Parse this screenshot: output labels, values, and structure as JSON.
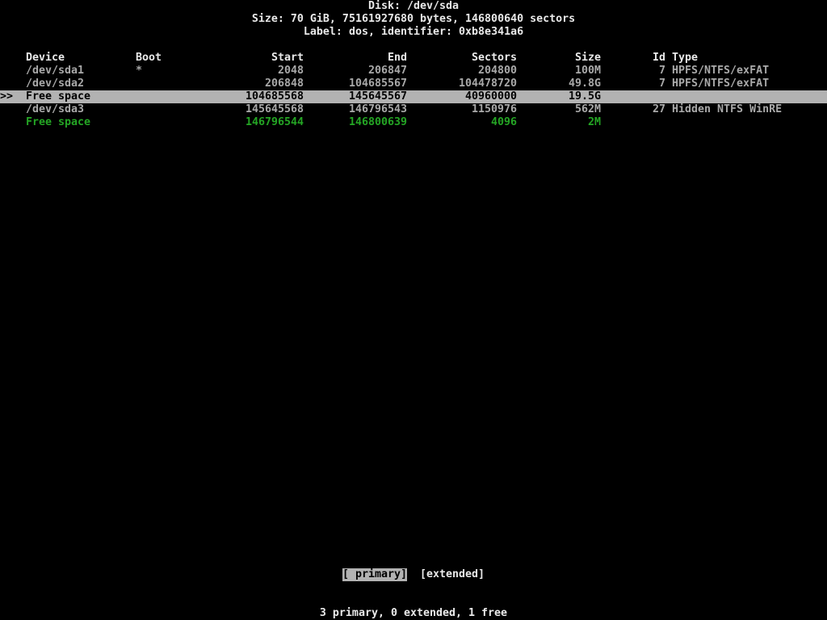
{
  "terminal": {
    "app": "cfdisk",
    "colors": {
      "background": "#000000",
      "bright_text": "#e9e9e9",
      "normal_text": "#a9a9a9",
      "free_space_green": "#24a524",
      "highlight_bg": "#b2b2b2",
      "highlight_text": "#000000"
    },
    "header": {
      "disk_line": "Disk: /dev/sda",
      "size_line": "Size: 70 GiB, 75161927680 bytes, 146800640 sectors",
      "label_line": "Label: dos, identifier: 0xb8e341a6"
    },
    "table": {
      "columns": {
        "device": "Device",
        "boot": "Boot",
        "start": "Start",
        "end": "End",
        "sectors": "Sectors",
        "size": "Size",
        "id": "Id",
        "type": "Type"
      },
      "selection_pointer": ">>",
      "rows": [
        {
          "device": "/dev/sda1",
          "boot": "*",
          "start": "2048",
          "end": "206847",
          "sectors": "204800",
          "size": "100M",
          "id": "7",
          "type": "HPFS/NTFS/exFAT",
          "state": "normal"
        },
        {
          "device": "/dev/sda2",
          "boot": "",
          "start": "206848",
          "end": "104685567",
          "sectors": "104478720",
          "size": "49.8G",
          "id": "7",
          "type": "HPFS/NTFS/exFAT",
          "state": "normal"
        },
        {
          "device": "Free space",
          "boot": "",
          "start": "104685568",
          "end": "145645567",
          "sectors": "40960000",
          "size": "19.5G",
          "id": "",
          "type": "",
          "state": "selected"
        },
        {
          "device": "/dev/sda3",
          "boot": "",
          "start": "145645568",
          "end": "146796543",
          "sectors": "1150976",
          "size": "562M",
          "id": "27",
          "type": "Hidden NTFS WinRE",
          "state": "normal"
        },
        {
          "device": "Free space",
          "boot": "",
          "start": "146796544",
          "end": "146800639",
          "sectors": "4096",
          "size": "2M",
          "state": "free",
          "id": "",
          "type": ""
        }
      ]
    },
    "menu": {
      "buttons": [
        {
          "label": "[ primary]",
          "selected": true
        },
        {
          "label": "[extended]",
          "selected": false
        }
      ]
    },
    "status_line": "3 primary, 0 extended, 1 free"
  }
}
